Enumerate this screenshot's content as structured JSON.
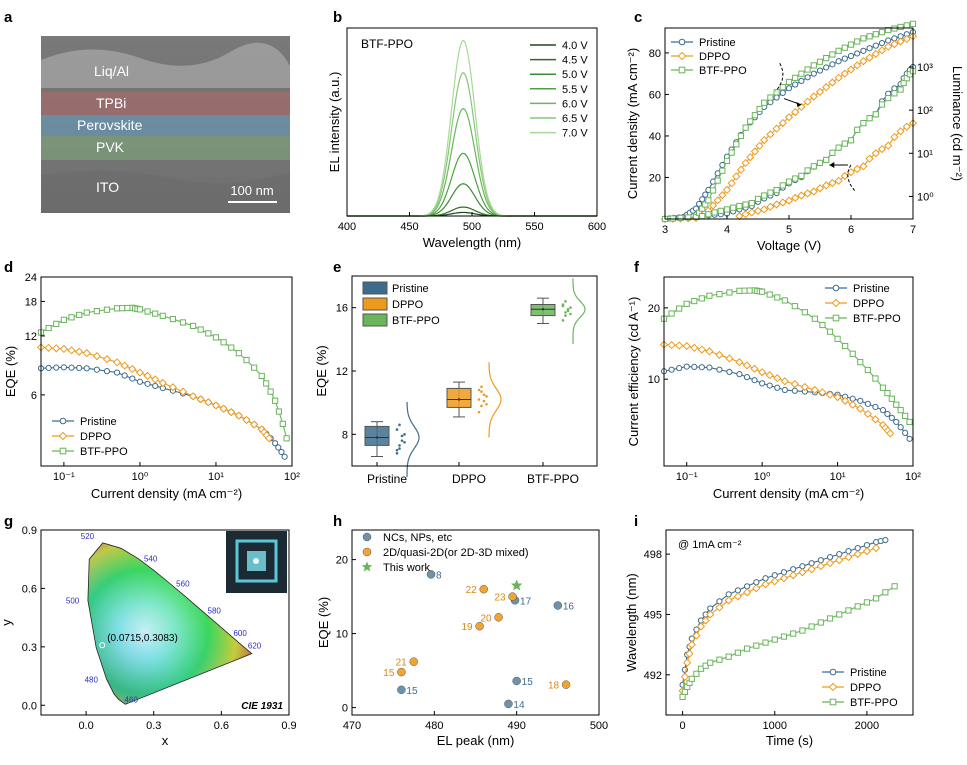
{
  "figure": {
    "panel_labels": [
      "a",
      "b",
      "c",
      "d",
      "e",
      "f",
      "g",
      "h",
      "i"
    ],
    "colors": {
      "pristine": "#3d6d8c",
      "dppo": "#ee9a1c",
      "btf": "#6ab55b",
      "axis": "#000000"
    },
    "series_names": [
      "Pristine",
      "DPPO",
      "BTF-PPO"
    ]
  },
  "chart_data": [
    {
      "panel": "a",
      "type": "image",
      "layers": [
        "Liq/Al",
        "TPBi",
        "Perovskite",
        "PVK",
        "ITO"
      ],
      "layer_colors": [
        "#6a6a6a",
        "#9c6a6a",
        "#6a8fa8",
        "#7d9a7a",
        "#7a7a7a"
      ],
      "scale_bar": "100 nm"
    },
    {
      "panel": "b",
      "type": "line",
      "title": "BTF-PPO",
      "xlabel": "Wavelength (nm)",
      "ylabel": "EL intensity (a.u.)",
      "xlim": [
        400,
        600
      ],
      "ylim": [
        0,
        1.05
      ],
      "xticks": [
        400,
        450,
        500,
        550,
        600
      ],
      "peak": 493,
      "fwhm": 22,
      "series": [
        {
          "name": "4.0 V",
          "amp": 0.02,
          "color": "#1f4a1c"
        },
        {
          "name": "4.5 V",
          "amp": 0.05,
          "color": "#2f6a28"
        },
        {
          "name": "5.0 V",
          "amp": 0.18,
          "color": "#3f8a34"
        },
        {
          "name": "5.5 V",
          "amp": 0.35,
          "color": "#4ea042"
        },
        {
          "name": "6.0 V",
          "amp": 0.6,
          "color": "#68b85a"
        },
        {
          "name": "6.5 V",
          "amp": 0.8,
          "color": "#86c878"
        },
        {
          "name": "7.0 V",
          "amp": 0.98,
          "color": "#a6d896"
        }
      ]
    },
    {
      "panel": "c",
      "type": "line",
      "xlabel": "Voltage (V)",
      "ylabel": "Current density (mA cm⁻²)",
      "ylabel_right": "Luminance (cd m⁻²)",
      "xlim": [
        3,
        7
      ],
      "ylim": [
        0,
        92
      ],
      "xticks": [
        3,
        4,
        5,
        6,
        7
      ],
      "yticks": [
        20,
        40,
        60,
        80
      ],
      "right_log_range": [
        0.3,
        8000
      ],
      "right_ticks": [
        {
          "v": 1,
          "l": "10⁰"
        },
        {
          "v": 10,
          "l": "10¹"
        },
        {
          "v": 100,
          "l": "10²"
        },
        {
          "v": 1000,
          "l": "10³"
        }
      ],
      "current": [
        {
          "name": "Pristine",
          "x": [
            3,
            3.3,
            3.5,
            3.7,
            4.0,
            4.3,
            4.6,
            5.0,
            5.4,
            5.8,
            6.2,
            6.6,
            7.0
          ],
          "y": [
            0,
            1,
            5,
            14,
            30,
            44,
            54,
            63,
            70,
            76,
            81,
            86,
            90
          ]
        },
        {
          "name": "DPPO",
          "x": [
            3,
            3.5,
            3.7,
            4.0,
            4.3,
            4.6,
            5.0,
            5.4,
            5.8,
            6.2,
            6.6,
            7.0
          ],
          "y": [
            0,
            0.5,
            4,
            14,
            27,
            38,
            49,
            59,
            68,
            76,
            83,
            88
          ]
        },
        {
          "name": "BTF-PPO",
          "x": [
            3,
            3.5,
            3.7,
            4.0,
            4.3,
            4.6,
            5.0,
            5.4,
            5.8,
            6.2,
            6.6,
            7.0
          ],
          "y": [
            0,
            1,
            9,
            28,
            44,
            56,
            66,
            74,
            81,
            87,
            91,
            94
          ]
        }
      ],
      "luminance": [
        {
          "name": "Pristine",
          "x": [
            3.6,
            4.0,
            4.4,
            4.8,
            5.2,
            5.6,
            6.0,
            6.4,
            6.8,
            7.0
          ],
          "y": [
            0.35,
            0.4,
            0.6,
            1.2,
            2.8,
            7,
            20,
            80,
            400,
            1000
          ]
        },
        {
          "name": "DPPO",
          "x": [
            4.2,
            4.6,
            5.0,
            5.4,
            5.8,
            6.2,
            6.6,
            7.0
          ],
          "y": [
            0.35,
            0.5,
            0.8,
            1.3,
            2.3,
            5,
            15,
            50
          ]
        },
        {
          "name": "BTF-PPO",
          "x": [
            3.6,
            4.0,
            4.4,
            4.8,
            5.2,
            5.6,
            6.0,
            6.4,
            6.8,
            7.0
          ],
          "y": [
            0.35,
            0.5,
            0.7,
            1.4,
            3,
            7,
            20,
            80,
            300,
            800
          ]
        }
      ]
    },
    {
      "panel": "d",
      "type": "line",
      "xlabel": "Current density (mA cm⁻²)",
      "ylabel": "EQE (%)",
      "xscale": "log",
      "xlim": [
        0.05,
        100
      ],
      "xticks": [
        {
          "v": 0.1,
          "l": "10⁻¹"
        },
        {
          "v": 1,
          "l": "10⁰"
        },
        {
          "v": 10,
          "l": "10¹"
        },
        {
          "v": 100,
          "l": "10²"
        }
      ],
      "yscale": "log",
      "ylim": [
        2.6,
        24
      ],
      "yticks": [
        {
          "v": 6,
          "l": "6"
        },
        {
          "v": 12,
          "l": "12"
        },
        {
          "v": 18,
          "l": "18"
        },
        {
          "v": 24,
          "l": "24"
        }
      ],
      "series": [
        {
          "name": "Pristine",
          "x": [
            0.05,
            0.1,
            0.2,
            0.5,
            1,
            2,
            5,
            10,
            20,
            40,
            60,
            80
          ],
          "y": [
            8.2,
            8.3,
            8.2,
            7.8,
            7.0,
            6.5,
            5.9,
            5.3,
            4.7,
            4.0,
            3.4,
            2.9
          ]
        },
        {
          "name": "DPPO",
          "x": [
            0.05,
            0.1,
            0.2,
            0.5,
            1,
            2,
            5,
            10,
            20,
            40,
            50
          ],
          "y": [
            10.5,
            10.3,
            9.8,
            8.8,
            7.8,
            6.9,
            5.9,
            5.3,
            4.7,
            4.0,
            3.6
          ]
        },
        {
          "name": "BTF-PPO",
          "x": [
            0.05,
            0.1,
            0.2,
            0.5,
            0.8,
            1,
            2,
            5,
            10,
            20,
            40,
            60,
            85
          ],
          "y": [
            12.5,
            14.5,
            15.8,
            16.6,
            16.7,
            16.4,
            15.2,
            13.5,
            11.8,
            9.8,
            7.5,
            5.6,
            3.6
          ]
        }
      ]
    },
    {
      "panel": "e",
      "type": "box",
      "ylabel": "EQE (%)",
      "ylim": [
        6,
        18
      ],
      "yticks": [
        8,
        12,
        16
      ],
      "categories": [
        "Pristine",
        "DPPO",
        "BTF-PPO"
      ],
      "boxes": [
        {
          "name": "Pristine",
          "whisker": [
            6.6,
            8.8
          ],
          "q1": 7.3,
          "median": 7.8,
          "q3": 8.5,
          "mean": 7.8,
          "points": [
            7.0,
            7.3,
            7.6,
            8.0,
            8.3,
            8.6,
            7.9,
            7.5,
            6.8,
            7.1
          ]
        },
        {
          "name": "DPPO",
          "whisker": [
            9.1,
            11.3
          ],
          "q1": 9.7,
          "median": 10.2,
          "q3": 10.9,
          "mean": 10.2,
          "points": [
            9.4,
            9.8,
            10.1,
            10.4,
            10.8,
            11.0,
            10.5,
            9.9,
            10.2,
            10.7
          ]
        },
        {
          "name": "BTF-PPO",
          "whisker": [
            15.0,
            16.6
          ],
          "q1": 15.5,
          "median": 15.9,
          "q3": 16.2,
          "mean": 15.9,
          "points": [
            15.2,
            15.5,
            15.8,
            16.0,
            16.2,
            16.4,
            15.9,
            15.6,
            16.1,
            15.7
          ]
        }
      ]
    },
    {
      "panel": "f",
      "type": "line",
      "xlabel": "Current density (mA cm⁻²)",
      "ylabel": "Current efficiency (cd A⁻¹)",
      "xscale": "log",
      "xlim": [
        0.05,
        100
      ],
      "xticks": [
        {
          "v": 0.1,
          "l": "10⁻¹"
        },
        {
          "v": 1,
          "l": "10⁰"
        },
        {
          "v": 10,
          "l": "10¹"
        },
        {
          "v": 100,
          "l": "10²"
        }
      ],
      "yscale": "log",
      "ylim": [
        4.3,
        27
      ],
      "yticks": [
        {
          "v": 10,
          "l": "10"
        },
        {
          "v": 20,
          "l": "20"
        }
      ],
      "series": [
        {
          "name": "Pristine",
          "x": [
            0.05,
            0.1,
            0.2,
            0.5,
            1,
            2,
            5,
            10,
            20,
            40,
            60,
            90
          ],
          "y": [
            10.8,
            11.3,
            11.2,
            10.5,
            9.6,
            9.0,
            8.8,
            8.6,
            8.1,
            7.4,
            6.6,
            5.6
          ]
        },
        {
          "name": "DPPO",
          "x": [
            0.05,
            0.1,
            0.2,
            0.5,
            1,
            2,
            5,
            10,
            20,
            40,
            50
          ],
          "y": [
            14.0,
            13.8,
            13.1,
            11.8,
            10.7,
            9.8,
            9.0,
            8.4,
            7.5,
            6.4,
            5.9
          ]
        },
        {
          "name": "BTF-PPO",
          "x": [
            0.05,
            0.1,
            0.2,
            0.5,
            0.8,
            1,
            2,
            5,
            10,
            20,
            40,
            60,
            90
          ],
          "y": [
            18.0,
            20.8,
            22.5,
            23.6,
            23.7,
            23.4,
            21.5,
            18.0,
            14.8,
            11.8,
            9.2,
            7.8,
            6.6
          ]
        }
      ]
    },
    {
      "panel": "g",
      "type": "scatter",
      "title": "CIE 1931",
      "xlabel": "x",
      "ylabel": "y",
      "xlim": [
        -0.2,
        0.9
      ],
      "ylim": [
        -0.05,
        0.9
      ],
      "xticks": [
        0.0,
        0.3,
        0.6,
        0.9
      ],
      "yticks": [
        0.0,
        0.3,
        0.6,
        0.9
      ],
      "point": {
        "x": 0.0715,
        "y": 0.3083,
        "label": "(0.0715,0.3083)"
      },
      "wavelength_labels": [
        {
          "l": "460",
          "x": 0.144,
          "y": 0.03
        },
        {
          "l": "480",
          "x": 0.091,
          "y": 0.133
        },
        {
          "l": "500",
          "x": 0.008,
          "y": 0.538
        },
        {
          "l": "520",
          "x": 0.074,
          "y": 0.834
        },
        {
          "l": "540",
          "x": 0.23,
          "y": 0.754
        },
        {
          "l": "560",
          "x": 0.373,
          "y": 0.624
        },
        {
          "l": "580",
          "x": 0.512,
          "y": 0.487
        },
        {
          "l": "600",
          "x": 0.627,
          "y": 0.372
        },
        {
          "l": "620",
          "x": 0.691,
          "y": 0.308
        }
      ]
    },
    {
      "panel": "h",
      "type": "scatter",
      "xlabel": "EL peak (nm)",
      "ylabel": "EQE (%)",
      "xlim": [
        470,
        500
      ],
      "ylim": [
        -1,
        24
      ],
      "xticks": [
        470,
        480,
        490,
        500
      ],
      "yticks": [
        0,
        10,
        20
      ],
      "series": [
        {
          "name": "NCs, NPs, etc",
          "points": [
            {
              "x": 479.6,
              "y": 18.0,
              "l": "8"
            },
            {
              "x": 476.0,
              "y": 2.4,
              "l": "15"
            },
            {
              "x": 489.0,
              "y": 0.5,
              "l": "14"
            },
            {
              "x": 490.0,
              "y": 3.6,
              "l": "15"
            },
            {
              "x": 495.0,
              "y": 13.8,
              "l": "16"
            },
            {
              "x": 489.8,
              "y": 14.5,
              "l": "17"
            }
          ]
        },
        {
          "name": "2D/quasi-2D(or 2D-3D mixed)",
          "points": [
            {
              "x": 486.0,
              "y": 16.0,
              "l": "22"
            },
            {
              "x": 489.5,
              "y": 15.0,
              "l": "23"
            },
            {
              "x": 487.8,
              "y": 12.2,
              "l": "20"
            },
            {
              "x": 485.5,
              "y": 11.0,
              "l": "19"
            },
            {
              "x": 477.5,
              "y": 6.2,
              "l": "21"
            },
            {
              "x": 476.0,
              "y": 4.8,
              "l": "15"
            },
            {
              "x": 496.0,
              "y": 3.1,
              "l": "18"
            }
          ]
        },
        {
          "name": "This work",
          "points": [
            {
              "x": 490.0,
              "y": 16.5,
              "l": ""
            }
          ]
        }
      ]
    },
    {
      "panel": "i",
      "type": "line",
      "title": "@ 1mA cm⁻²",
      "xlabel": "Time (s)",
      "ylabel": "Wavelength (nm)",
      "xlim": [
        -180,
        2500
      ],
      "ylim": [
        490,
        499.2
      ],
      "xticks": [
        0,
        1000,
        2000
      ],
      "yticks": [
        492,
        495,
        498
      ],
      "series": [
        {
          "name": "Pristine",
          "x": [
            0,
            50,
            100,
            200,
            300,
            500,
            700,
            900,
            1100,
            1300,
            1500,
            1700,
            1900,
            2100,
            2200
          ],
          "y": [
            491.5,
            493.0,
            493.8,
            494.7,
            495.3,
            496.0,
            496.4,
            496.8,
            497.1,
            497.4,
            497.7,
            498.0,
            498.3,
            498.6,
            498.7
          ]
        },
        {
          "name": "DPPO",
          "x": [
            0,
            50,
            100,
            200,
            300,
            500,
            700,
            900,
            1100,
            1300,
            1500,
            1700,
            1900,
            2100
          ],
          "y": [
            491.2,
            492.6,
            493.5,
            494.4,
            495.0,
            495.7,
            496.1,
            496.5,
            496.8,
            497.1,
            497.4,
            497.7,
            498.0,
            498.3
          ]
        },
        {
          "name": "BTF-PPO",
          "x": [
            0,
            50,
            100,
            200,
            300,
            500,
            700,
            900,
            1100,
            1300,
            1500,
            1700,
            1900,
            2100,
            2300
          ],
          "y": [
            490.9,
            491.4,
            491.8,
            492.3,
            492.6,
            492.9,
            493.3,
            493.6,
            493.9,
            494.2,
            494.6,
            495.0,
            495.4,
            495.8,
            496.4
          ]
        }
      ]
    }
  ]
}
